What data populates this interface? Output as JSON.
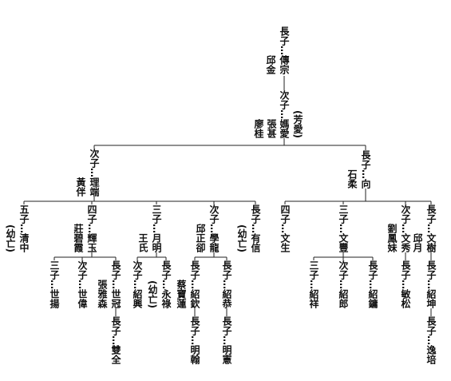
{
  "nodes": [
    {
      "label": "長子…傳宗",
      "spouses": [
        "邱金"
      ]
    },
    {
      "label": "次子…媽愛",
      "spouses": [
        "(芳愛)",
        "張甚",
        "廖桂"
      ]
    },
    {
      "label": "次子…理端",
      "spouses": [
        "黃伴"
      ]
    },
    {
      "label": "長子…向",
      "spouses": [
        "石柔"
      ]
    },
    {
      "label": "五子…清中",
      "spouses": [
        "(幼亡)"
      ]
    },
    {
      "label": "四子…輝玉",
      "spouses": [
        "莊碧霞"
      ]
    },
    {
      "label": "三子…月明",
      "spouses": [
        "王氏"
      ]
    },
    {
      "label": "次子…學龍",
      "spouses": [
        "邱正卻"
      ]
    },
    {
      "label": "長子…有信",
      "spouses": [
        "(幼亡)"
      ]
    },
    {
      "label": "三子…世揚",
      "spouses": []
    },
    {
      "label": "次子…世偉",
      "spouses": []
    },
    {
      "label": "長子…世冠",
      "spouses": [
        "張雅森"
      ]
    },
    {
      "label": "長子…雙全",
      "spouses": []
    },
    {
      "label": "次子…紹興",
      "spouses": []
    },
    {
      "label": "長子…永祿",
      "spouses": [
        "(幼亡)"
      ]
    },
    {
      "label": "長子…紹欽",
      "spouses": [
        "蔡寶蓮"
      ]
    },
    {
      "label": "長子…明翰",
      "spouses": []
    },
    {
      "label": "長子…紹恭",
      "spouses": []
    },
    {
      "label": "長子…明憲",
      "spouses": []
    },
    {
      "label": "四子…文生",
      "spouses": []
    },
    {
      "label": "三子…文豐",
      "spouses": []
    },
    {
      "label": "次子…文秀",
      "spouses": [
        "劉鳳妹"
      ]
    },
    {
      "label": "長子…文樹",
      "spouses": [
        "邱月"
      ]
    },
    {
      "label": "三子…紹祥",
      "spouses": []
    },
    {
      "label": "次子…紹郎",
      "spouses": []
    },
    {
      "label": "長子…紹鏞",
      "spouses": []
    },
    {
      "label": "長子…敏松",
      "spouses": []
    },
    {
      "label": "長子…紹坤",
      "spouses": []
    },
    {
      "label": "長子…逸培",
      "spouses": []
    }
  ]
}
